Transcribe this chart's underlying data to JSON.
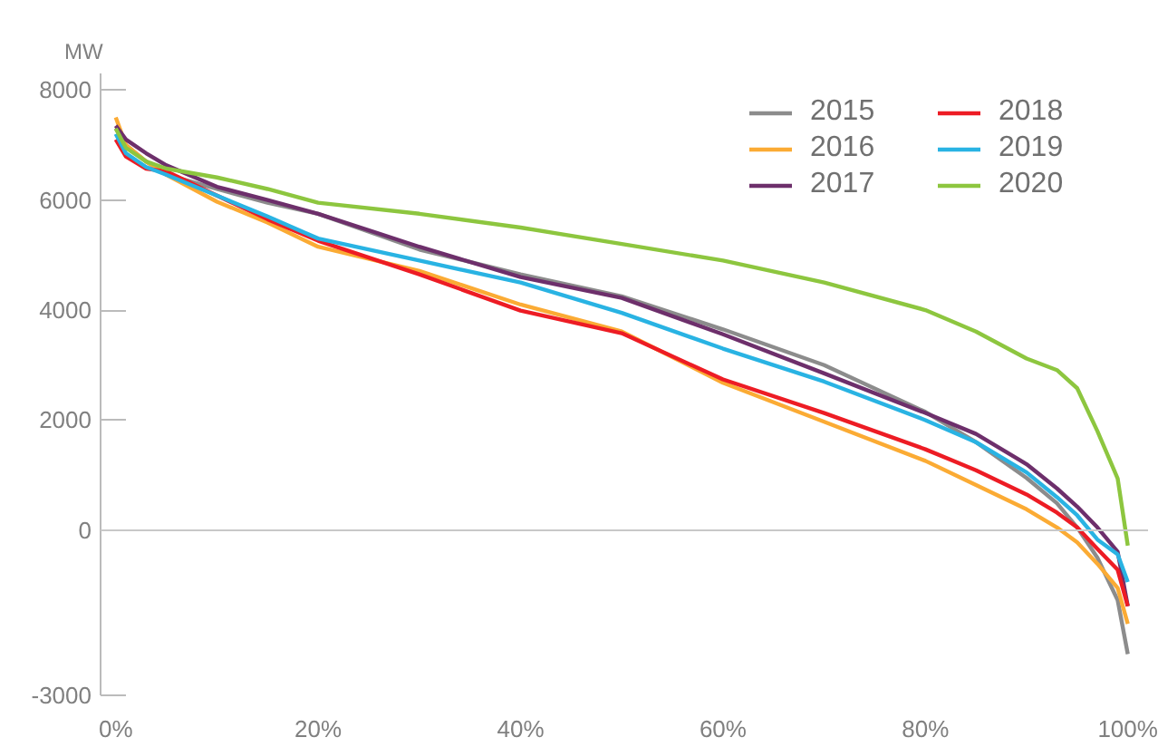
{
  "chart_data": {
    "type": "line",
    "ylabel": "MW",
    "x": [
      0,
      1,
      3,
      5,
      10,
      15,
      20,
      30,
      40,
      50,
      60,
      70,
      80,
      85,
      90,
      93,
      95,
      97,
      99,
      100
    ],
    "series": [
      {
        "name": "2015",
        "color": "#8c8c8c",
        "values": [
          7300,
          7000,
          6700,
          6460,
          6200,
          5950,
          5750,
          5100,
          4650,
          4250,
          3650,
          3000,
          2150,
          1600,
          950,
          490,
          50,
          -500,
          -1270,
          -2250
        ]
      },
      {
        "name": "2016",
        "color": "#fbab34",
        "values": [
          7500,
          7000,
          6700,
          6460,
          5970,
          5590,
          5150,
          4710,
          4100,
          3610,
          2680,
          1970,
          1260,
          820,
          380,
          50,
          -220,
          -610,
          -1050,
          -1700
        ]
      },
      {
        "name": "2017",
        "color": "#6d2f6b",
        "values": [
          7350,
          7100,
          6850,
          6630,
          6240,
          6000,
          5750,
          5150,
          4600,
          4220,
          3560,
          2850,
          2130,
          1750,
          1200,
          760,
          430,
          50,
          -390,
          -1380
        ]
      },
      {
        "name": "2018",
        "color": "#ed1c24",
        "values": [
          7100,
          6790,
          6570,
          6520,
          6080,
          5650,
          5260,
          4650,
          3990,
          3580,
          2740,
          2130,
          1470,
          1090,
          650,
          320,
          50,
          -340,
          -720,
          -1380
        ]
      },
      {
        "name": "2019",
        "color": "#29b3e3",
        "values": [
          7200,
          6850,
          6600,
          6460,
          6080,
          5700,
          5300,
          4900,
          4500,
          3950,
          3300,
          2700,
          2000,
          1600,
          1050,
          600,
          270,
          -170,
          -440,
          -940
        ]
      },
      {
        "name": "2020",
        "color": "#8dc63f",
        "values": [
          7300,
          6950,
          6700,
          6570,
          6410,
          6200,
          5950,
          5750,
          5500,
          5200,
          4900,
          4500,
          4000,
          3610,
          3120,
          2910,
          2580,
          1800,
          940,
          -280
        ]
      }
    ],
    "xlim": [
      -1.5,
      102
    ],
    "xticks": [
      {
        "value": 0,
        "label": "0%"
      },
      {
        "value": 20,
        "label": "20%"
      },
      {
        "value": 40,
        "label": "40%"
      },
      {
        "value": 60,
        "label": "60%"
      },
      {
        "value": 80,
        "label": "80%"
      },
      {
        "value": 100,
        "label": "100%"
      }
    ],
    "ylim": [
      -3000,
      8300
    ],
    "yticks": [
      -3000,
      0,
      2000,
      4000,
      6000,
      8000
    ],
    "ref_lines": [
      {
        "axis": "y",
        "value": 0,
        "color": "#c8c8c8"
      }
    ],
    "grid": false,
    "legend": "top right",
    "marker": "none",
    "line_style": "solid"
  }
}
